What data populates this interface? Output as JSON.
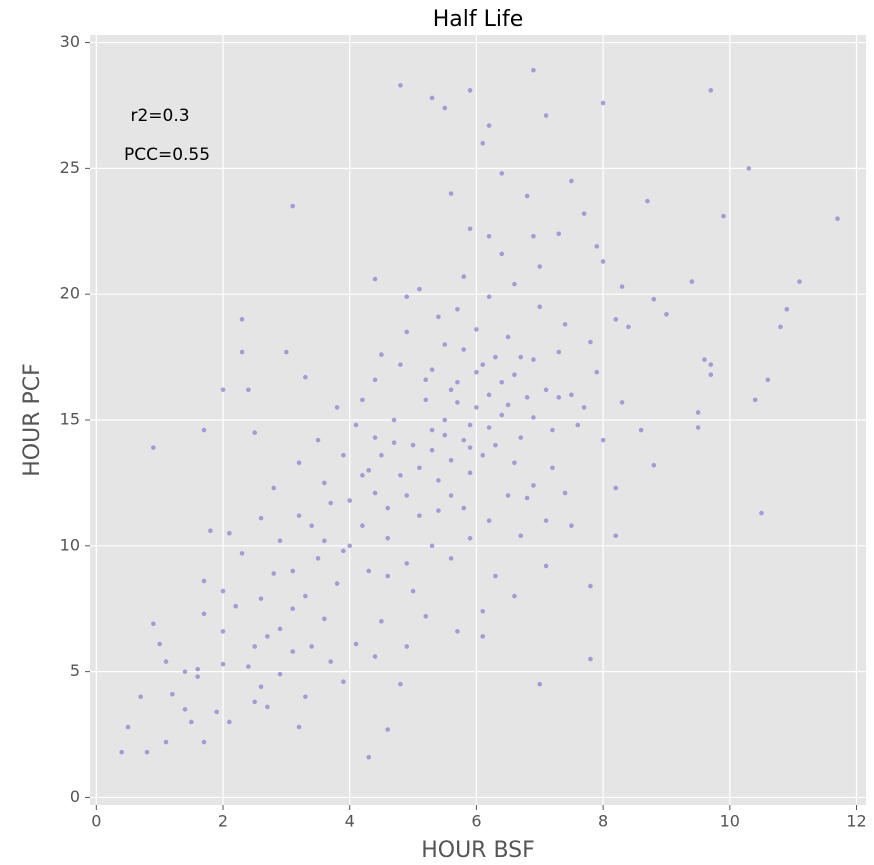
{
  "chart_data": {
    "type": "scatter",
    "title": "Half Life",
    "x_label": "HOUR BSF",
    "y_label": "HOUR PCF",
    "annotations": [
      "r2=0.3",
      "PCC=0.55"
    ],
    "color": "#988ED5",
    "grid": true,
    "xlim": [
      -0.1,
      12.15
    ],
    "ylim": [
      -0.3,
      30.3
    ],
    "xticks": [
      0,
      2,
      4,
      6,
      8,
      10,
      12
    ],
    "yticks": [
      0,
      5,
      10,
      15,
      20,
      25,
      30
    ],
    "x": [
      4.8,
      5.3,
      5.9,
      6.9,
      5.5,
      7.1,
      8,
      9.7,
      6.2,
      6.1,
      6.4,
      7.5,
      10.3,
      5.6,
      6.8,
      8.7,
      9.9,
      11.7,
      3.1,
      7.7,
      5.9,
      7.3,
      6.9,
      6.2,
      7.9,
      8,
      4.4,
      5.1,
      4.9,
      8.3,
      9.4,
      11.1,
      8.8,
      9,
      10.9,
      10.8,
      2.3,
      2.3,
      3,
      9.6,
      9.7,
      9.7,
      10.6,
      10.4,
      9.5,
      9.5,
      2.0,
      2.4,
      1.7,
      0.9,
      2.5,
      3.3,
      8.8,
      8.6,
      8.2,
      10.5,
      7.8,
      7.8,
      7.0,
      4.8,
      4.6,
      4.3,
      1.7,
      1.1,
      0.8,
      0.5,
      0.4,
      1.4,
      1.2,
      0.7,
      1.5,
      1.9,
      2.1,
      1.6,
      1.7,
      1.7,
      1.8,
      2.1,
      2.0,
      0.9,
      1,
      1.1,
      1.4,
      2,
      2.5,
      2.7,
      3.2,
      3.3,
      2.5,
      2.9,
      5.5,
      5.8,
      6,
      5.6,
      6.2,
      5.9,
      6.4,
      5.3,
      5.7,
      6.1,
      6.6,
      5.4,
      6.8,
      5,
      4.8,
      6.3,
      5.2,
      6.7,
      7.1,
      4.6,
      5.1,
      4.4,
      4.2,
      3.9,
      4,
      4.5,
      4.7,
      5.8,
      6,
      5.5,
      6.5,
      6.9,
      7.3,
      7.5,
      7.6,
      7.2,
      6.9,
      6.5,
      6.2,
      5.9,
      5.6,
      5.3,
      4.9,
      4.6,
      4.3,
      3.8,
      3.5,
      3.3,
      3.6,
      3.1,
      2.8,
      2.6,
      2.9,
      3.2,
      3.6,
      3.9,
      4.1,
      3.8,
      4.4,
      4.8,
      5.3,
      5.7,
      6.2,
      6.6,
      7,
      7.4,
      7.8,
      7.9,
      7.7,
      8,
      7.4,
      7.1,
      6.7,
      6.3,
      6.1,
      5.7,
      5.2,
      5,
      4.5,
      4.1,
      3.7,
      3.4,
      3.9,
      4.4,
      4.9,
      6.1,
      6.6,
      7.1,
      7.5,
      8.2,
      8.3,
      8.4,
      8.2,
      7,
      6.4,
      5.8,
      5.4,
      4.9,
      4.5,
      4.2,
      3.5,
      3.2,
      2.8,
      2.6,
      2.3,
      2.2,
      2.4,
      2.9,
      3.1,
      3.4,
      3.7,
      4,
      4.3,
      4.7,
      5.2,
      5.6,
      5.9,
      6.3,
      6.6,
      6.8,
      7.2,
      6.4,
      6,
      5.5,
      5.7,
      6.2,
      5.9,
      5.1,
      4.9,
      4.6,
      5.4,
      5.8,
      6.5,
      6.9,
      7.3,
      5.3,
      5.6,
      6.1,
      6.7,
      4.2,
      4.4,
      3.6,
      3.1,
      2.7,
      2,
      1.6,
      2.6
    ],
    "values": [
      28.3,
      27.8,
      28.1,
      28.9,
      27.4,
      27.1,
      27.6,
      28.1,
      26.7,
      26,
      24.8,
      24.5,
      25,
      24,
      23.9,
      23.7,
      23.1,
      23,
      23.5,
      23.2,
      22.6,
      22.4,
      22.3,
      22.3,
      21.9,
      21.3,
      20.6,
      20.2,
      19.9,
      20.3,
      20.5,
      20.5,
      19.8,
      19.2,
      19.4,
      18.7,
      19,
      17.7,
      17.7,
      17.4,
      17.2,
      16.8,
      16.6,
      15.8,
      15.3,
      14.7,
      16.2,
      16.2,
      14.6,
      13.9,
      14.5,
      16.7,
      13.2,
      14.6,
      10.4,
      11.3,
      8.4,
      5.5,
      4.5,
      4.5,
      2.7,
      1.6,
      2.2,
      2.2,
      1.8,
      2.8,
      1.8,
      3.5,
      4.1,
      4.0,
      3.0,
      3.4,
      3.0,
      4.8,
      7.3,
      8.6,
      10.6,
      10.5,
      8.2,
      6.9,
      6.1,
      5.4,
      5,
      5.3,
      3.8,
      3.6,
      2.8,
      4,
      6,
      6.7,
      15,
      14.2,
      15.5,
      13.4,
      16,
      14.8,
      15.2,
      13.8,
      16.5,
      13.6,
      16.8,
      12.6,
      15.9,
      14,
      12.8,
      17.5,
      15.8,
      14.3,
      16.2,
      11.5,
      11.2,
      12.1,
      10.8,
      9.8,
      11.8,
      13.6,
      15,
      17.8,
      18.6,
      18,
      18.3,
      17.4,
      17.7,
      16,
      14.8,
      13.1,
      12.4,
      12,
      11,
      10.3,
      9.5,
      10,
      9.3,
      8.8,
      9,
      8.5,
      9.5,
      8,
      7.1,
      7.5,
      8.9,
      7.9,
      10.2,
      11.2,
      12.5,
      13.6,
      14.8,
      15.5,
      16.6,
      17.2,
      17,
      19.4,
      19.9,
      20.4,
      19.5,
      18.8,
      18.1,
      16.9,
      15.5,
      14.2,
      12.1,
      11,
      10.4,
      8.8,
      7.4,
      6.6,
      7.2,
      8.2,
      7,
      6.1,
      5.4,
      6,
      4.6,
      5.6,
      6,
      6.4,
      8,
      9.2,
      10.8,
      12.3,
      15.7,
      18.7,
      19,
      21.1,
      21.6,
      20.7,
      19.1,
      18.5,
      17.6,
      15.8,
      14.2,
      13.3,
      12.3,
      11.1,
      9.7,
      7.6,
      5.2,
      4.9,
      5.8,
      10.8,
      11.7,
      10,
      13,
      14.1,
      16.6,
      12,
      12.9,
      14,
      13.3,
      11.9,
      14.6,
      16.5,
      16.9,
      14.4,
      15.7,
      14.7,
      13.9,
      13.1,
      12,
      10.3,
      11.4,
      11.5,
      15.6,
      15.1,
      15.9,
      14.6,
      16.2,
      17.2,
      17.5,
      12.8,
      14.3,
      10.2,
      9,
      6.4,
      6.6,
      5.1,
      4.4
    ]
  }
}
